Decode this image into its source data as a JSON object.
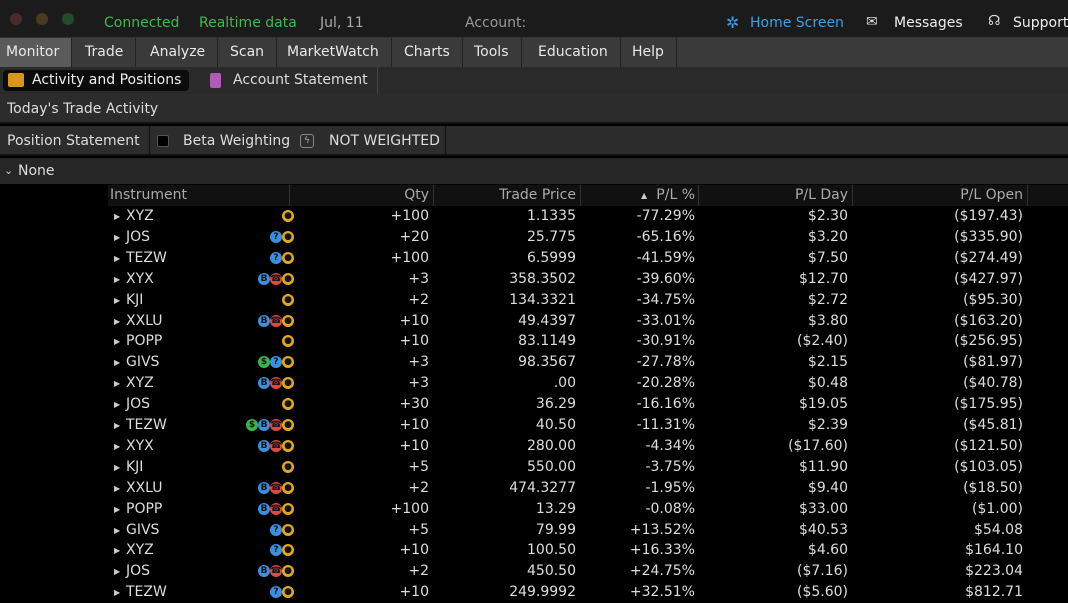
{
  "status_bar": {
    "connection": "Connected",
    "data_mode": "Realtime data",
    "date": "Jul, 11",
    "account_label": "Account:",
    "links": [
      "Home Screen",
      "Messages",
      "Support"
    ]
  },
  "nav": {
    "tabs": [
      "Monitor",
      "Trade",
      "Analyze",
      "Scan",
      "MarketWatch",
      "Charts",
      "Tools",
      "Education",
      "Help"
    ]
  },
  "sub_nav": {
    "tabs": [
      "Activity and Positions",
      "Account Statement"
    ]
  },
  "section": {
    "title": "Today's Trade Activity"
  },
  "position_bar": {
    "title": "Position Statement",
    "beta_label": "Beta Weighting",
    "beta_value": "NOT WEIGHTED"
  },
  "group": {
    "label": "None"
  },
  "table": {
    "columns": [
      "Instrument",
      "Qty",
      "Trade Price",
      "P/L %",
      "P/L Day",
      "P/L Open"
    ],
    "rows": [
      [
        "XYZ",
        "+100",
        "1.1335",
        "-77.29%",
        "$2.30",
        "($197.43)"
      ],
      [
        "JOS",
        "+20",
        "25.775",
        "-65.16%",
        "$3.20",
        "($335.90)"
      ],
      [
        "TEZW",
        "+100",
        "6.5999",
        "-41.59%",
        "$7.50",
        "($274.49)"
      ],
      [
        "XYX",
        "+3",
        "358.3502",
        "-39.60%",
        "$12.70",
        "($427.97)"
      ],
      [
        "KJI",
        "+2",
        "134.3321",
        "-34.75%",
        "$2.72",
        "($95.30)"
      ],
      [
        "XXLU",
        "+10",
        "49.4397",
        "-33.01%",
        "$3.80",
        "($163.20)"
      ],
      [
        "POPP",
        "+10",
        "83.1149",
        "-30.91%",
        "($2.40)",
        "($256.95)"
      ],
      [
        "GIVS",
        "+3",
        "98.3567",
        "-27.78%",
        "$2.15",
        "($81.97)"
      ],
      [
        "XYZ",
        "+3",
        ".00",
        "-20.28%",
        "$0.48",
        "($40.78)"
      ],
      [
        "JOS",
        "+30",
        "36.29",
        "-16.16%",
        "$19.05",
        "($175.95)"
      ],
      [
        "TEZW",
        "+10",
        "40.50",
        "-11.31%",
        "$2.39",
        "($45.81)"
      ],
      [
        "XYX",
        "+10",
        "280.00",
        "-4.34%",
        "($17.60)",
        "($121.50)"
      ],
      [
        "KJI",
        "+5",
        "550.00",
        "-3.75%",
        "$11.90",
        "($103.05)"
      ],
      [
        "XXLU",
        "+2",
        "474.3277",
        "-1.95%",
        "$9.40",
        "($18.50)"
      ],
      [
        "POPP",
        "+100",
        "13.29",
        "-0.08%",
        "$33.00",
        "($1.00)"
      ],
      [
        "GIVS",
        "+5",
        "79.99",
        "+13.52%",
        "$40.53",
        "$54.08"
      ],
      [
        "XYZ",
        "+10",
        "100.50",
        "+16.33%",
        "$4.60",
        "$164.10"
      ],
      [
        "JOS",
        "+2",
        "450.50",
        "+24.75%",
        "($7.16)",
        "$223.04"
      ],
      [
        "TEZW",
        "+10",
        "249.9992",
        "+32.51%",
        "($5.60)",
        "$812.71"
      ]
    ]
  }
}
